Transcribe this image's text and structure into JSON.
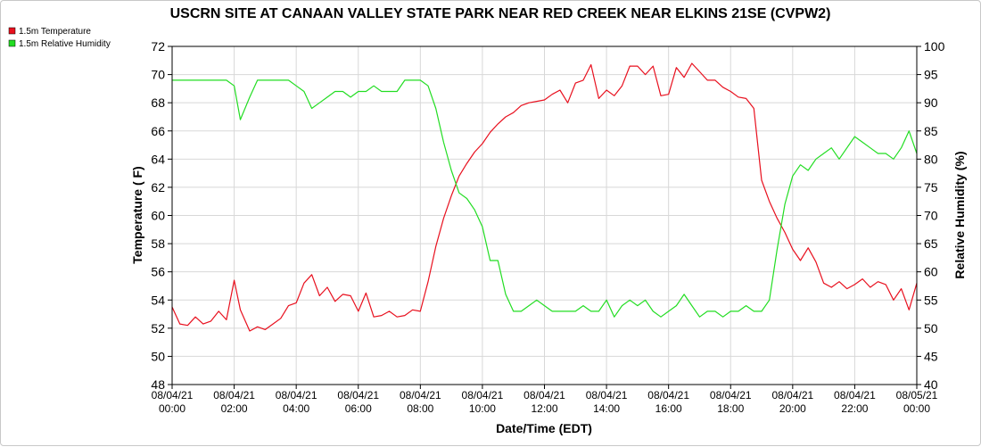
{
  "chart_data": {
    "type": "line",
    "title": "USCRN SITE AT CANAAN VALLEY STATE PARK NEAR RED CREEK NEAR ELKINS 21SE (CVPW2)",
    "xlabel": "Date/Time (EDT)",
    "ylabel_left": "Temperature ( F)",
    "ylabel_right": "Relative Humidity (%)",
    "ylim_left": [
      48,
      72
    ],
    "ylim_right": [
      40,
      100
    ],
    "yticks_left": [
      "48",
      "50",
      "52",
      "54",
      "56",
      "58",
      "60",
      "62",
      "64",
      "66",
      "68",
      "70",
      "72"
    ],
    "yticks_right": [
      "40",
      "45",
      "50",
      "55",
      "60",
      "65",
      "70",
      "75",
      "80",
      "85",
      "90",
      "95",
      "100"
    ],
    "xlim_hours": [
      0,
      24
    ],
    "xticks": [
      {
        "date": "08/04/21",
        "time": "00:00"
      },
      {
        "date": "08/04/21",
        "time": "02:00"
      },
      {
        "date": "08/04/21",
        "time": "04:00"
      },
      {
        "date": "08/04/21",
        "time": "06:00"
      },
      {
        "date": "08/04/21",
        "time": "08:00"
      },
      {
        "date": "08/04/21",
        "time": "10:00"
      },
      {
        "date": "08/04/21",
        "time": "12:00"
      },
      {
        "date": "08/04/21",
        "time": "14:00"
      },
      {
        "date": "08/04/21",
        "time": "16:00"
      },
      {
        "date": "08/04/21",
        "time": "18:00"
      },
      {
        "date": "08/04/21",
        "time": "20:00"
      },
      {
        "date": "08/04/21",
        "time": "22:00"
      },
      {
        "date": "08/05/21",
        "time": "00:00"
      }
    ],
    "grid": true,
    "legend_position": "top-left",
    "series": [
      {
        "name": "1.5m Temperature",
        "axis": "left",
        "color": "#e8101e",
        "x": [
          0,
          0.25,
          0.5,
          0.75,
          1,
          1.25,
          1.5,
          1.75,
          2,
          2.2,
          2.5,
          2.75,
          3,
          3.25,
          3.5,
          3.75,
          4,
          4.25,
          4.5,
          4.75,
          5,
          5.25,
          5.5,
          5.75,
          6,
          6.25,
          6.5,
          6.75,
          7,
          7.25,
          7.5,
          7.75,
          8,
          8.25,
          8.5,
          8.75,
          9,
          9.25,
          9.5,
          9.75,
          10,
          10.25,
          10.5,
          10.75,
          11,
          11.25,
          11.5,
          11.75,
          12,
          12.25,
          12.5,
          12.75,
          13,
          13.25,
          13.5,
          13.75,
          14,
          14.25,
          14.5,
          14.75,
          15,
          15.25,
          15.5,
          15.75,
          16,
          16.25,
          16.5,
          16.75,
          17,
          17.25,
          17.5,
          17.75,
          18,
          18.25,
          18.5,
          18.75,
          19,
          19.25,
          19.5,
          19.75,
          20,
          20.25,
          20.5,
          20.75,
          21,
          21.25,
          21.5,
          21.75,
          22,
          22.25,
          22.5,
          22.75,
          23,
          23.25,
          23.5,
          23.75,
          24
        ],
        "values": [
          53.5,
          52.3,
          52.2,
          52.8,
          52.3,
          52.5,
          53.2,
          52.6,
          55.4,
          53.3,
          51.8,
          52.1,
          51.9,
          52.3,
          52.7,
          53.6,
          53.8,
          55.2,
          55.8,
          54.3,
          54.9,
          53.9,
          54.4,
          54.3,
          53.2,
          54.5,
          52.8,
          52.9,
          53.2,
          52.8,
          52.9,
          53.3,
          53.2,
          55.3,
          57.8,
          59.8,
          61.4,
          62.8,
          63.7,
          64.5,
          65.1,
          65.9,
          66.5,
          67.0,
          67.3,
          67.8,
          68.0,
          68.1,
          68.2,
          68.6,
          68.9,
          68.0,
          69.4,
          69.6,
          70.7,
          68.3,
          68.9,
          68.5,
          69.2,
          70.6,
          70.6,
          70.0,
          70.6,
          68.5,
          68.6,
          70.5,
          69.8,
          70.8,
          70.2,
          69.6,
          69.6,
          69.1,
          68.8,
          68.4,
          68.3,
          67.6,
          62.5,
          61.0,
          59.8,
          58.8,
          57.6,
          56.8,
          57.7,
          56.7,
          55.2,
          54.9,
          55.3,
          54.8,
          55.1,
          55.5,
          54.9,
          55.3,
          55.1,
          54.0,
          54.8,
          53.3,
          55.2
        ]
      },
      {
        "name": "1.5m Relative Humidity",
        "axis": "right",
        "color": "#22dd22",
        "x": [
          0,
          0.25,
          0.5,
          0.75,
          1,
          1.25,
          1.5,
          1.75,
          2,
          2.2,
          2.5,
          2.75,
          3,
          3.25,
          3.5,
          3.75,
          4,
          4.25,
          4.5,
          4.75,
          5,
          5.25,
          5.5,
          5.75,
          6,
          6.25,
          6.5,
          6.75,
          7,
          7.25,
          7.5,
          7.75,
          8,
          8.25,
          8.5,
          8.75,
          9,
          9.25,
          9.5,
          9.75,
          10,
          10.25,
          10.5,
          10.75,
          11,
          11.25,
          11.5,
          11.75,
          12,
          12.25,
          12.5,
          12.75,
          13,
          13.25,
          13.5,
          13.75,
          14,
          14.25,
          14.5,
          14.75,
          15,
          15.25,
          15.5,
          15.75,
          16,
          16.25,
          16.5,
          16.75,
          17,
          17.25,
          17.5,
          17.75,
          18,
          18.25,
          18.5,
          18.75,
          19,
          19.25,
          19.5,
          19.75,
          20,
          20.25,
          20.5,
          20.75,
          21,
          21.25,
          21.5,
          21.75,
          22,
          22.25,
          22.5,
          22.75,
          23,
          23.25,
          23.5,
          23.75,
          24
        ],
        "values": [
          94,
          94,
          94,
          94,
          94,
          94,
          94,
          94,
          93,
          87,
          91,
          94,
          94,
          94,
          94,
          94,
          93,
          92,
          89,
          90,
          91,
          92,
          92,
          91,
          92,
          92,
          93,
          92,
          92,
          92,
          94,
          94,
          94,
          93,
          89,
          83,
          78,
          74,
          73,
          71,
          68,
          62,
          62,
          56,
          53,
          53,
          54,
          55,
          54,
          53,
          53,
          53,
          53,
          54,
          53,
          53,
          55,
          52,
          54,
          55,
          54,
          55,
          53,
          52,
          53,
          54,
          56,
          54,
          52,
          53,
          53,
          52,
          53,
          53,
          54,
          53,
          53,
          55,
          64,
          72,
          77,
          79,
          78,
          80,
          81,
          82,
          80,
          82,
          84,
          83,
          82,
          81,
          81,
          80,
          82,
          85,
          81
        ]
      }
    ]
  },
  "legend": {
    "items": [
      {
        "label": "1.5m Temperature",
        "color": "#e8101e"
      },
      {
        "label": "1.5m Relative Humidity",
        "color": "#22dd22"
      }
    ]
  }
}
